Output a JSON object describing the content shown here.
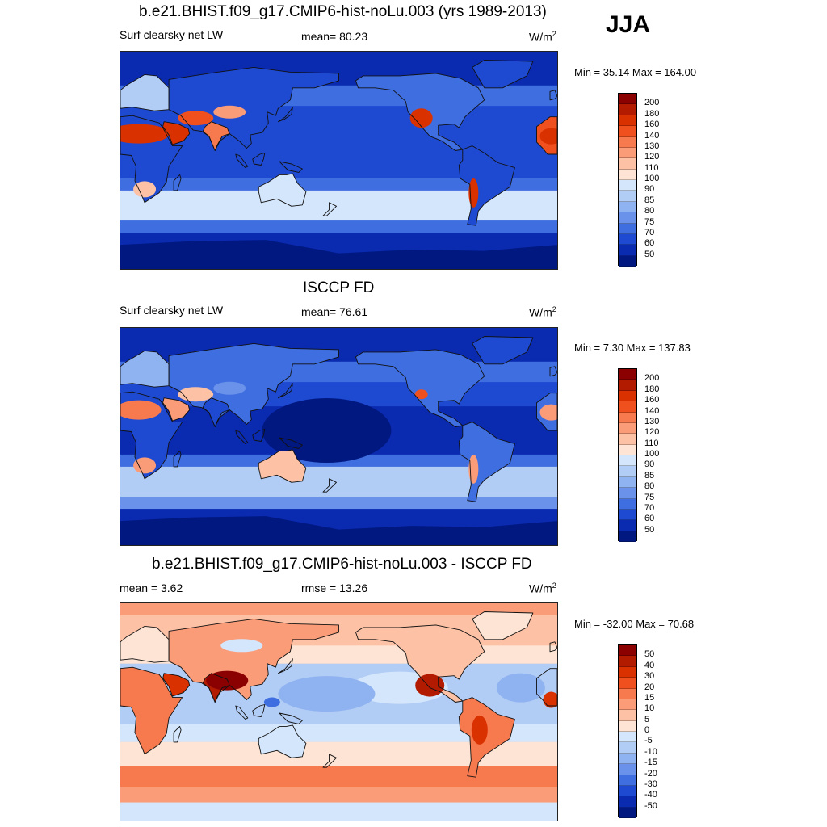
{
  "header": {
    "season": "JJA"
  },
  "panels": [
    {
      "title": "b.e21.BHIST.f09_g17.CMIP6-hist-noLu.003 (yrs 1989-2013)",
      "left_label": "Surf clearsky net LW",
      "center_label": "mean=  80.23",
      "units": "W/m",
      "units_sup": "2",
      "minmax": "Min =  35.14 Max = 164.00",
      "colorbar": {
        "labels": [
          "200",
          "180",
          "160",
          "140",
          "130",
          "120",
          "110",
          "100",
          "90",
          "85",
          "80",
          "75",
          "70",
          "60",
          "50"
        ],
        "colors": [
          "#8b0000",
          "#b31b00",
          "#d93100",
          "#f0501e",
          "#f77a4f",
          "#fb9c79",
          "#fdc2a6",
          "#fde4d4",
          "#d4e6fb",
          "#b2cdf5",
          "#8fb2f0",
          "#6a92ea",
          "#3f6ee0",
          "#1e4ad2",
          "#0a2ab0",
          "#001880"
        ]
      },
      "map_style": "abs_model"
    },
    {
      "title": "ISCCP FD",
      "left_label": "Surf clearsky net LW",
      "center_label": "mean=  76.61",
      "units": "W/m",
      "units_sup": "2",
      "minmax": "Min =   7.30 Max = 137.83",
      "colorbar": {
        "labels": [
          "200",
          "180",
          "160",
          "140",
          "130",
          "120",
          "110",
          "100",
          "90",
          "85",
          "80",
          "75",
          "70",
          "60",
          "50"
        ],
        "colors": [
          "#8b0000",
          "#b31b00",
          "#d93100",
          "#f0501e",
          "#f77a4f",
          "#fb9c79",
          "#fdc2a6",
          "#fde4d4",
          "#d4e6fb",
          "#b2cdf5",
          "#8fb2f0",
          "#6a92ea",
          "#3f6ee0",
          "#1e4ad2",
          "#0a2ab0",
          "#001880"
        ]
      },
      "map_style": "abs_obs"
    },
    {
      "title": "b.e21.BHIST.f09_g17.CMIP6-hist-noLu.003 - ISCCP FD",
      "left_label": "mean =   3.62",
      "center_label": "rmse =  13.26",
      "units": "W/m",
      "units_sup": "2",
      "minmax": "Min = -32.00 Max =  70.68",
      "colorbar": {
        "labels": [
          "50",
          "40",
          "30",
          "20",
          "15",
          "10",
          "5",
          "0",
          "-5",
          "-10",
          "-15",
          "-20",
          "-30",
          "-40",
          "-50"
        ],
        "colors": [
          "#8b0000",
          "#b31b00",
          "#d93100",
          "#f0501e",
          "#f77a4f",
          "#fb9c79",
          "#fdc2a6",
          "#fde4d4",
          "#d4e6fb",
          "#b2cdf5",
          "#8fb2f0",
          "#6a92ea",
          "#3f6ee0",
          "#1e4ad2",
          "#0a2ab0",
          "#001880"
        ]
      },
      "map_style": "diff"
    }
  ]
}
